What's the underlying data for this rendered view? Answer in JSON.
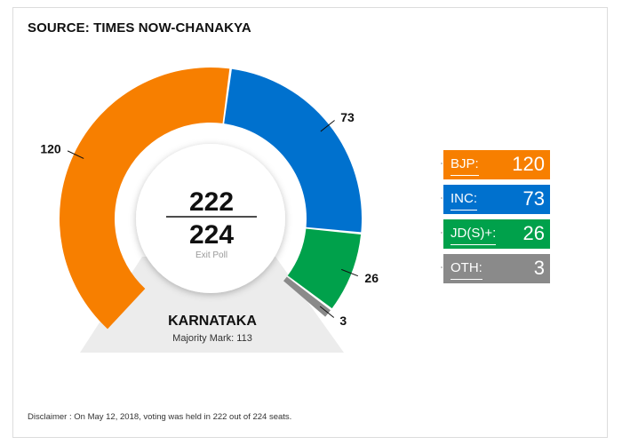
{
  "source": "SOURCE: TIMES NOW-CHANAKYA",
  "center": {
    "seats_declared": "222",
    "total_seats": "224",
    "caption": "Exit Poll"
  },
  "state": {
    "name": "KARNATAKA",
    "majority": "Majority Mark: 113"
  },
  "chart_data": {
    "type": "pie",
    "title": "",
    "series": [
      {
        "name": "BJP:",
        "value": 120,
        "label": "120",
        "color": "#f77f00"
      },
      {
        "name": "INC:",
        "value": 73,
        "label": "73",
        "color": "#0071ce"
      },
      {
        "name": "JD(S)+:",
        "value": 26,
        "label": "26",
        "color": "#00a14b"
      },
      {
        "name": "OTH:",
        "value": 3,
        "label": "3",
        "color": "#8a8a8a"
      }
    ],
    "total": 224,
    "legend_position": "right"
  },
  "legend": [
    {
      "label": "BJP:",
      "value": "120",
      "color": "#f77f00"
    },
    {
      "label": "INC:",
      "value": "73",
      "color": "#0071ce"
    },
    {
      "label": "JD(S)+:",
      "value": "26",
      "color": "#00a14b"
    },
    {
      "label": "OTH:",
      "value": "3",
      "color": "#8a8a8a"
    }
  ],
  "disclaimer": "Disclaimer : On May 12, 2018, voting was held in 222 out of 224 seats."
}
